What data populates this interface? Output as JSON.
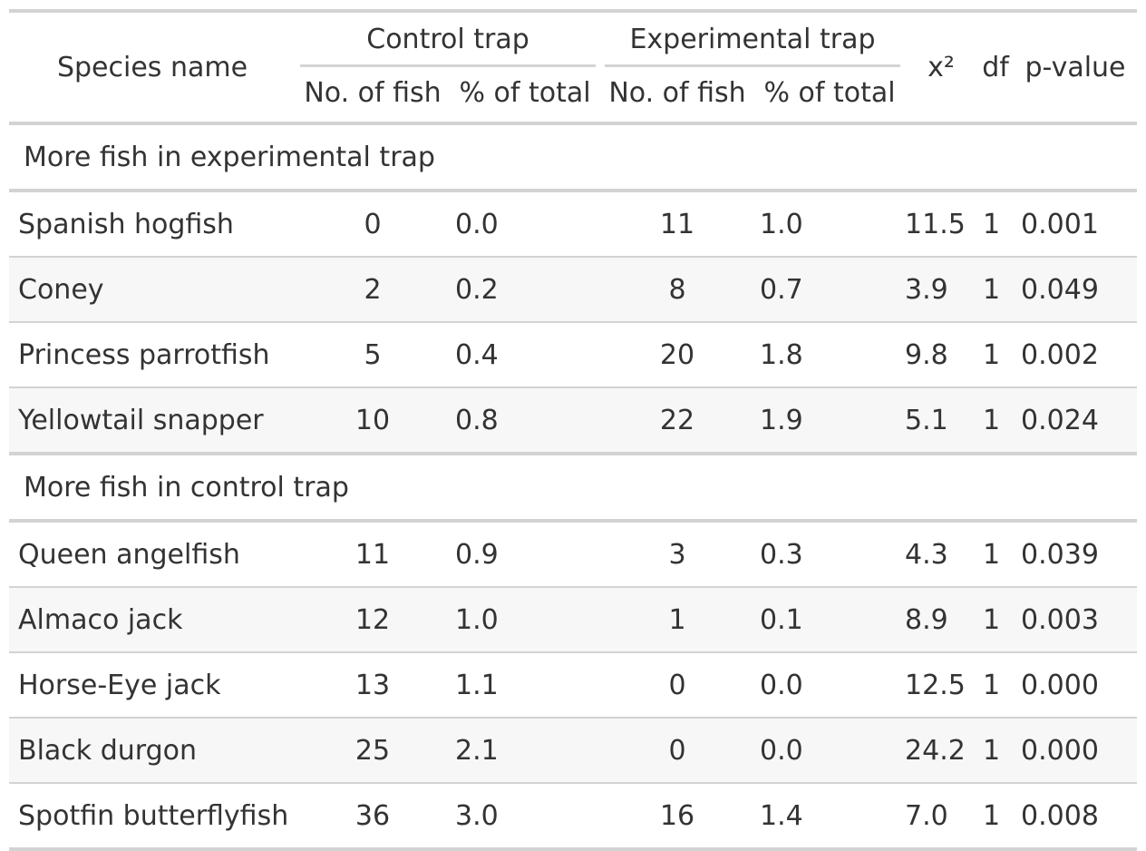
{
  "header": {
    "species": "Species name",
    "control_trap": "Control trap",
    "experimental_trap": "Experimental trap",
    "no_of_fish": "No. of fish",
    "pct_of_total": "% of total",
    "chi_sq": "x²",
    "df": "df",
    "p_value": "p-value"
  },
  "groups": [
    {
      "label": "More fish in experimental trap",
      "rows": [
        {
          "species": "Spanish hogfish",
          "ctrl_n": "0",
          "ctrl_pct": "0.0",
          "exp_n": "11",
          "exp_pct": "1.0",
          "chi": "11.5",
          "df": "1",
          "p": "0.001"
        },
        {
          "species": "Coney",
          "ctrl_n": "2",
          "ctrl_pct": "0.2",
          "exp_n": "8",
          "exp_pct": "0.7",
          "chi": "3.9",
          "df": "1",
          "p": "0.049"
        },
        {
          "species": "Princess parrotfish",
          "ctrl_n": "5",
          "ctrl_pct": "0.4",
          "exp_n": "20",
          "exp_pct": "1.8",
          "chi": "9.8",
          "df": "1",
          "p": "0.002"
        },
        {
          "species": "Yellowtail snapper",
          "ctrl_n": "10",
          "ctrl_pct": "0.8",
          "exp_n": "22",
          "exp_pct": "1.9",
          "chi": "5.1",
          "df": "1",
          "p": "0.024"
        }
      ]
    },
    {
      "label": "More fish in control trap",
      "rows": [
        {
          "species": "Queen angelfish",
          "ctrl_n": "11",
          "ctrl_pct": "0.9",
          "exp_n": "3",
          "exp_pct": "0.3",
          "chi": "4.3",
          "df": "1",
          "p": "0.039"
        },
        {
          "species": "Almaco jack",
          "ctrl_n": "12",
          "ctrl_pct": "1.0",
          "exp_n": "1",
          "exp_pct": "0.1",
          "chi": "8.9",
          "df": "1",
          "p": "0.003"
        },
        {
          "species": "Horse-Eye jack",
          "ctrl_n": "13",
          "ctrl_pct": "1.1",
          "exp_n": "0",
          "exp_pct": "0.0",
          "chi": "12.5",
          "df": "1",
          "p": "0.000"
        },
        {
          "species": "Black durgon",
          "ctrl_n": "25",
          "ctrl_pct": "2.1",
          "exp_n": "0",
          "exp_pct": "0.0",
          "chi": "24.2",
          "df": "1",
          "p": "0.000"
        },
        {
          "species": "Spotfin butterflyfish",
          "ctrl_n": "36",
          "ctrl_pct": "3.0",
          "exp_n": "16",
          "exp_pct": "1.4",
          "chi": "7.0",
          "df": "1",
          "p": "0.008"
        }
      ]
    }
  ]
}
